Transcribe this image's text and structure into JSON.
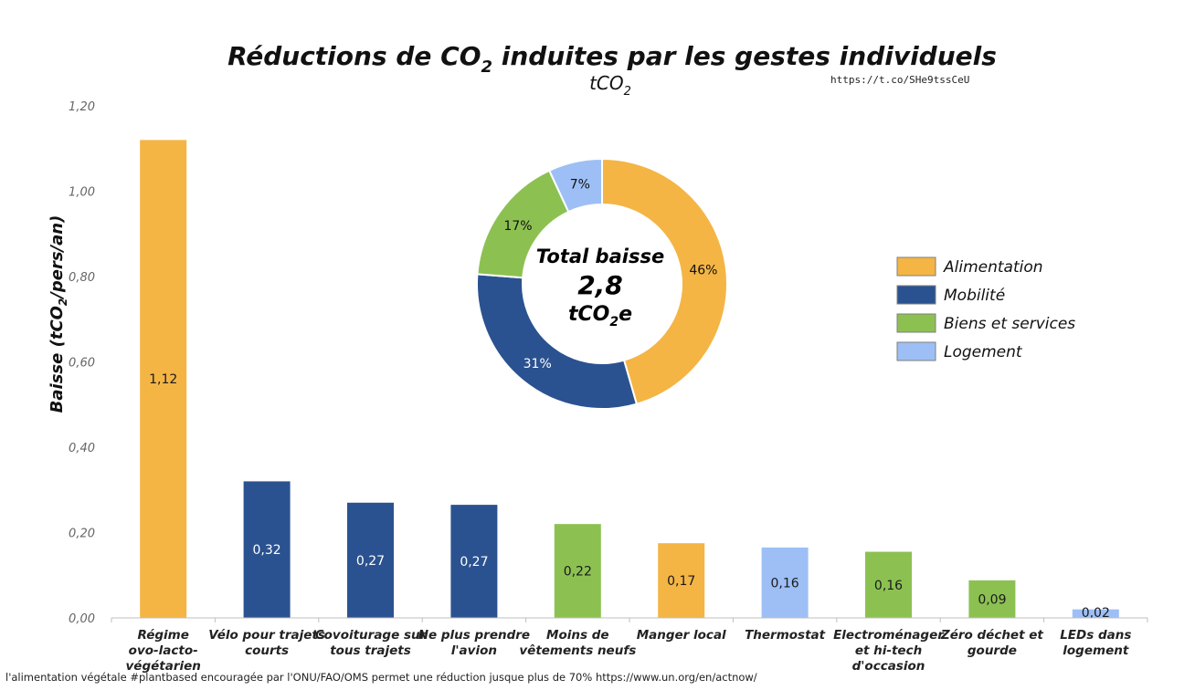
{
  "chart_data": {
    "type": "bar",
    "title_main": "Réductions de CO",
    "title_sub": "2",
    "title_rest": " induites par les gestes individuels",
    "subtitle_main": "tCO",
    "subtitle_sub": "2",
    "source_link": "https://t.co/SHe9tssCeU",
    "ylabel_a": "Baisse (tCO",
    "ylabel_sub": "2",
    "ylabel_b": "/pers/an)",
    "ylim": [
      0,
      1.2
    ],
    "yticks": [
      "0,00",
      "0,20",
      "0,40",
      "0,60",
      "0,80",
      "1,00",
      "1,20"
    ],
    "ytick_values": [
      0,
      0.2,
      0.4,
      0.6,
      0.8,
      1.0,
      1.2
    ],
    "colors": {
      "Alimentation": "#F4B545",
      "Mobilité": "#2B5290",
      "Biens et services": "#8CC152",
      "Logement": "#9DBFF5"
    },
    "bars": [
      {
        "category": [
          "Régime",
          "ovo-lacto-",
          "végétarien"
        ],
        "value": 1.12,
        "label": "1,12",
        "group": "Alimentation"
      },
      {
        "category": [
          "Vélo pour trajets",
          "courts"
        ],
        "value": 0.32,
        "label": "0,32",
        "group": "Mobilité"
      },
      {
        "category": [
          "Covoiturage sur",
          "tous trajets"
        ],
        "value": 0.27,
        "label": "0,27",
        "group": "Mobilité"
      },
      {
        "category": [
          "Ne plus prendre",
          "l'avion"
        ],
        "value": 0.265,
        "label": "0,27",
        "group": "Mobilité"
      },
      {
        "category": [
          "Moins de",
          "vêtements neufs"
        ],
        "value": 0.22,
        "label": "0,22",
        "group": "Biens et services"
      },
      {
        "category": [
          "Manger local"
        ],
        "value": 0.175,
        "label": "0,17",
        "group": "Alimentation"
      },
      {
        "category": [
          "Thermostat"
        ],
        "value": 0.165,
        "label": "0,16",
        "group": "Logement"
      },
      {
        "category": [
          "Electroménager",
          "et hi-tech",
          "d'occasion"
        ],
        "value": 0.155,
        "label": "0,16",
        "group": "Biens et services"
      },
      {
        "category": [
          "Zéro déchet et",
          "gourde"
        ],
        "value": 0.088,
        "label": "0,09",
        "group": "Biens et services"
      },
      {
        "category": [
          "LEDs dans",
          "logement"
        ],
        "value": 0.02,
        "label": "0,02",
        "group": "Logement"
      }
    ],
    "donut": {
      "slices": [
        {
          "name": "Alimentation",
          "percent": 46,
          "label": "46%"
        },
        {
          "name": "Mobilité",
          "percent": 31,
          "label": "31%"
        },
        {
          "name": "Biens et services",
          "percent": 17,
          "label": "17%"
        },
        {
          "name": "Logement",
          "percent": 7,
          "label": "7%"
        }
      ],
      "center_line1": "Total baisse",
      "center_line2": "2,8",
      "center_line3_main": "tCO",
      "center_line3_sub": "2",
      "center_line3_rest": "e"
    },
    "legend": [
      "Alimentation",
      "Mobilité",
      "Biens et services",
      "Logement"
    ],
    "legend_position": "right"
  },
  "footnote": "l'alimentation végétale #plantbased encouragée par l'ONU/FAO/OMS permet une réduction jusque plus de 70% https://www.un.org/en/actnow/"
}
